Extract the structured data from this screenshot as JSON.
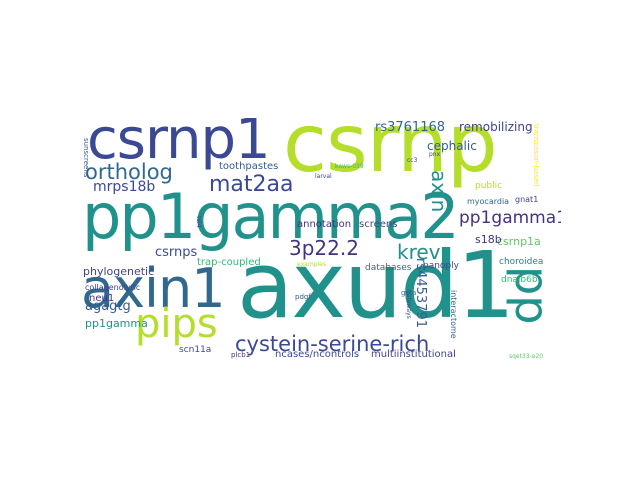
{
  "colors": {
    "navy": "#3b4994",
    "indigo": "#414487",
    "purple": "#46327e",
    "blue": "#31688e",
    "steel": "#365c8d",
    "teal": "#21918c",
    "teal_dark": "#26828e",
    "green": "#35b779",
    "green_light": "#5ec962",
    "lime": "#b5de2b",
    "yellow": "#e0e335",
    "gold": "#fde725"
  },
  "words": [
    "axud1",
    "csrnp",
    "csrnp1",
    "pp1gamma2",
    "axin1",
    "pips",
    "pp",
    "cystein-serine-rich",
    "mat2aa",
    "ortholog",
    "3p22.2",
    "krev",
    "pp1gamma1",
    "axin",
    "rs3761168",
    "remobilizing",
    "cephalic",
    "mrps18b",
    "csrnps",
    "toothpastes",
    "csrnp1a",
    "rs4453791",
    "agagtg",
    "pp1gamma",
    "phylogenetic",
    "collagenolytic",
    "neu1",
    "trap-coupled",
    "ncases/ncontrols",
    "multiinstitutional",
    "scn11a",
    "annotation",
    "screens",
    "public",
    "myocardia",
    "gnat1",
    "choroidea",
    "dnajb6b",
    "s18b",
    "databases",
    "panoply",
    "plcb1",
    "pdgf",
    "gcta",
    "interactome",
    "sqet33-e20",
    "sunscreens",
    "tel4",
    "cc3",
    "transposon-based",
    "gateways",
    "kaws-039",
    "larval",
    "examples",
    "pnx"
  ]
}
